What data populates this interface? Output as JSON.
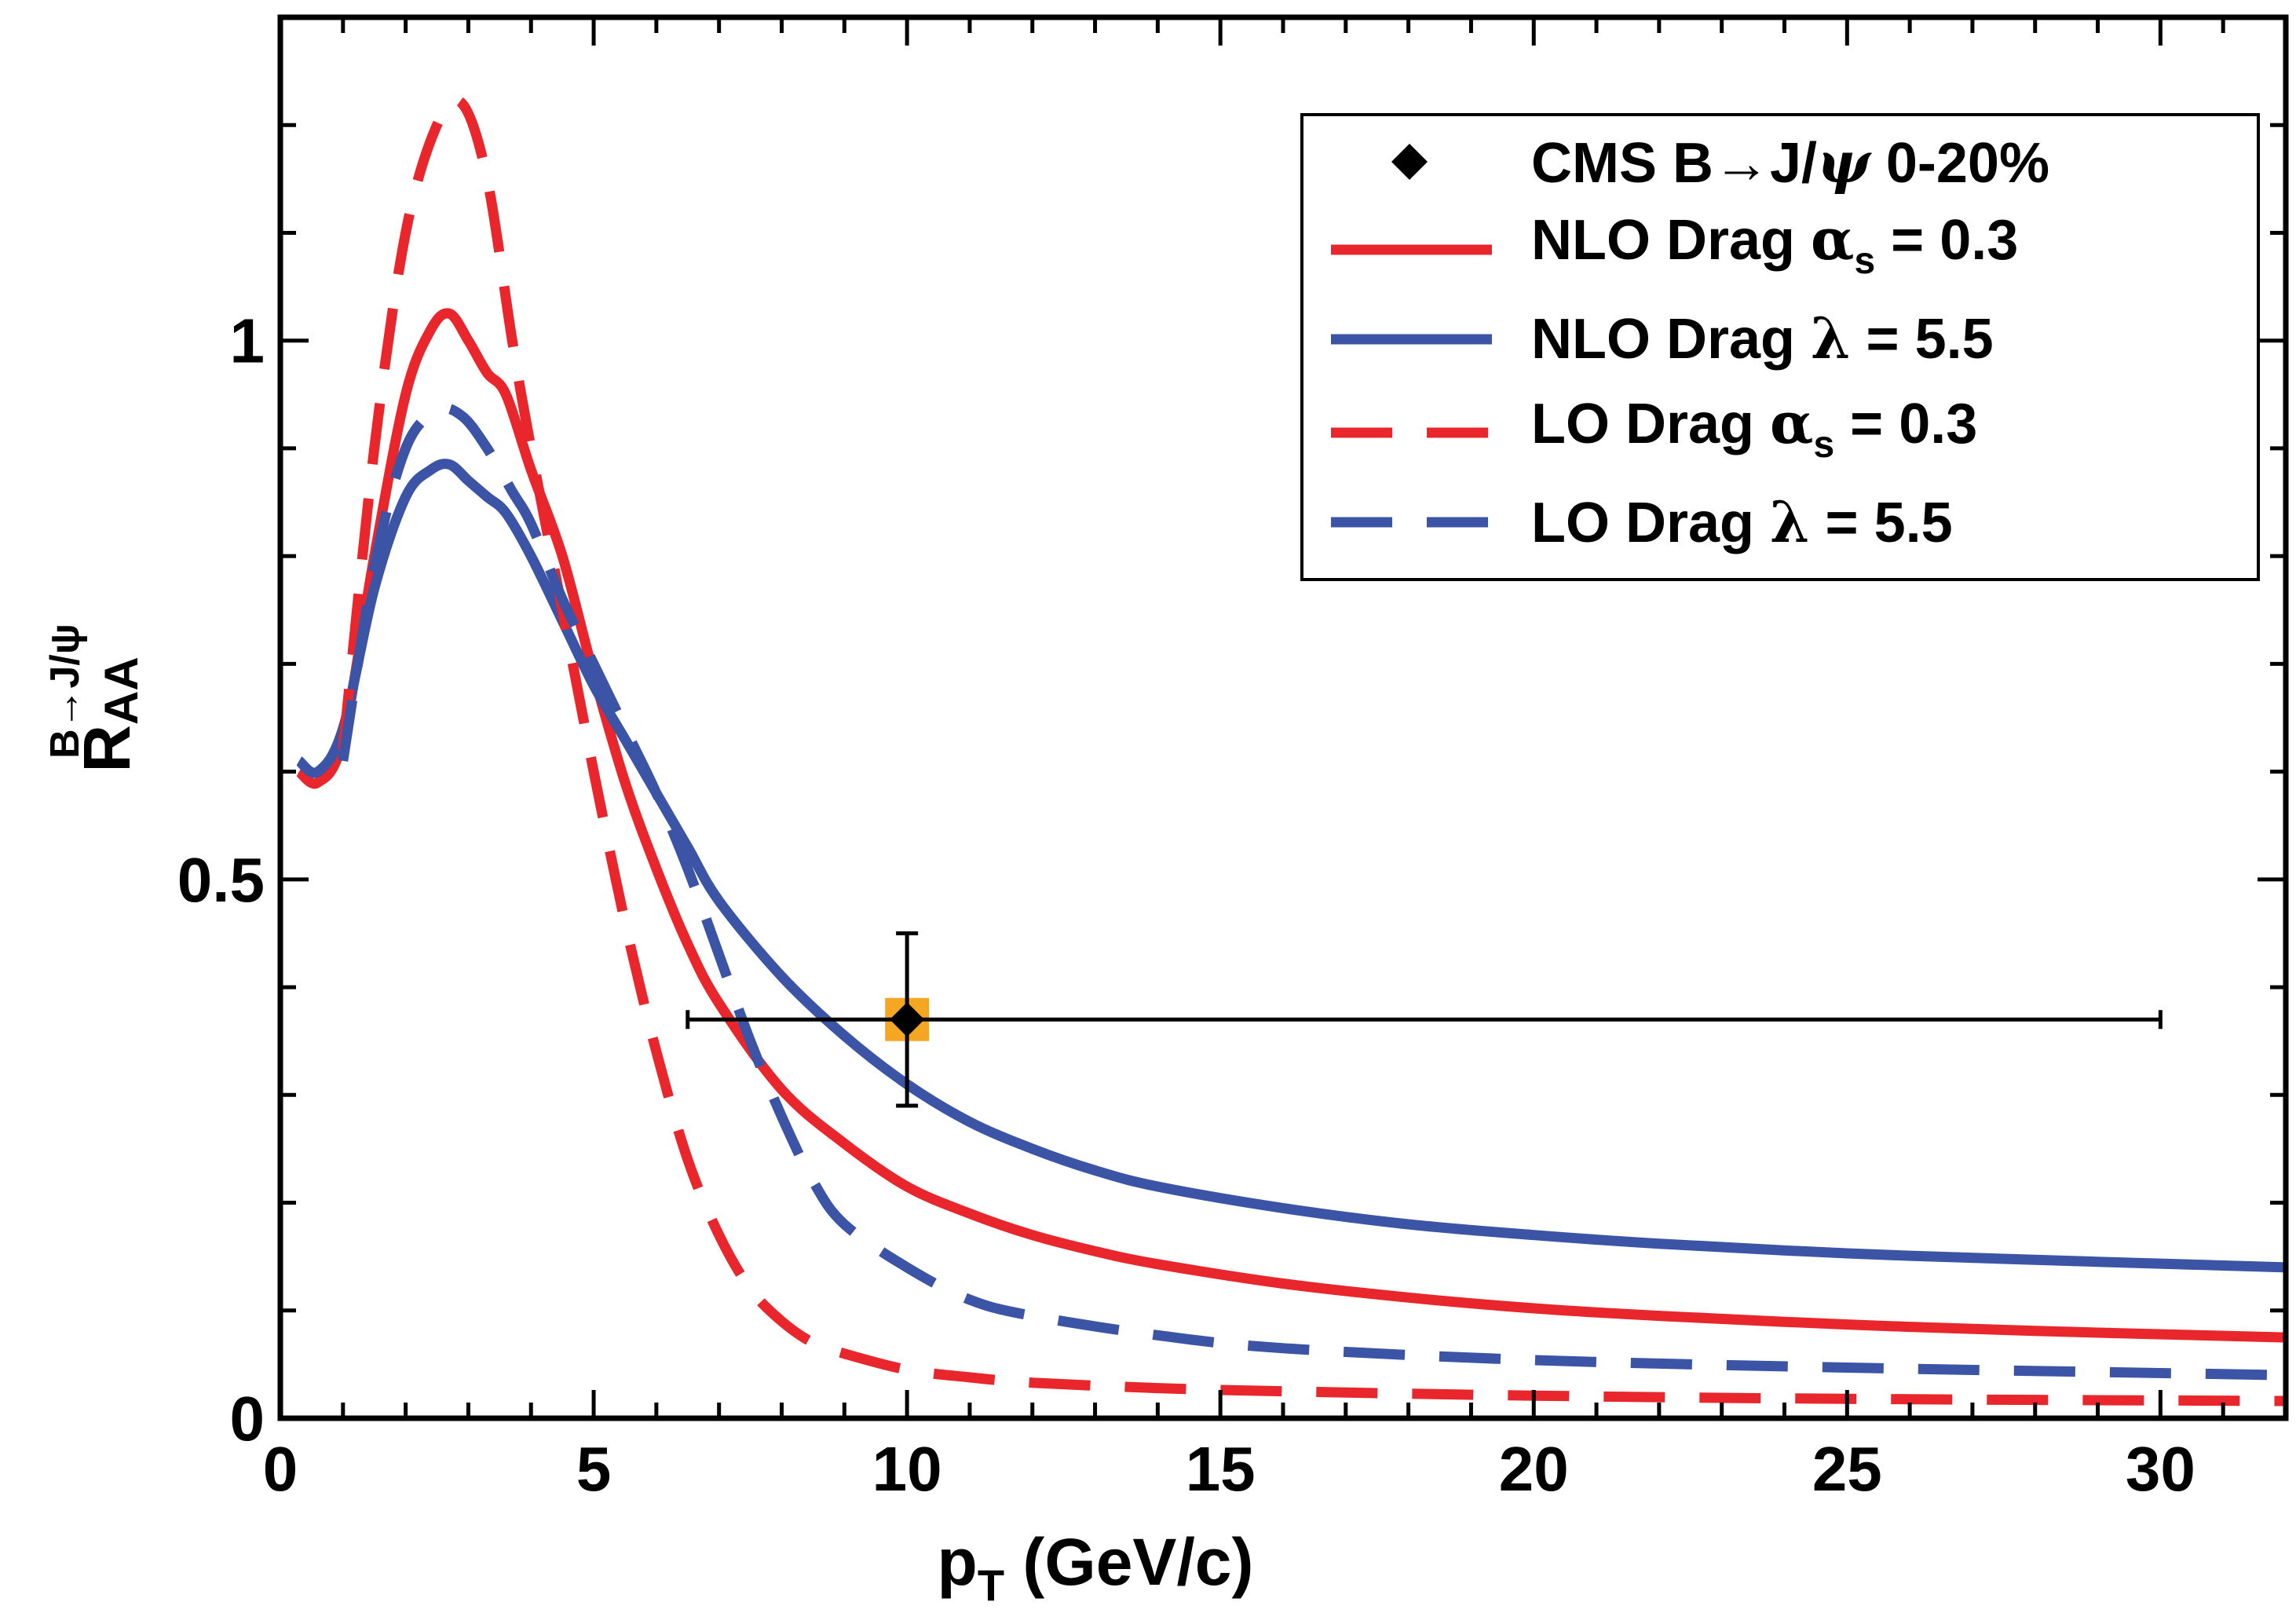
{
  "chart_data": {
    "type": "line",
    "xlabel_main": "p",
    "xlabel_sub": "T",
    "xlabel_rest": " (GeV/c)",
    "ylabel_main": "R",
    "ylabel_sub": "AA",
    "ylabel_sup": "B→J/ψ",
    "xlim": [
      0,
      32
    ],
    "ylim": [
      0,
      1.3
    ],
    "xticks": [
      0,
      5,
      10,
      15,
      20,
      25,
      30
    ],
    "xtick_labels": [
      "0",
      "5",
      "10",
      "15",
      "20",
      "25",
      "30"
    ],
    "yticks": [
      0,
      0.5,
      1
    ],
    "ytick_labels": [
      "0",
      "0.5",
      "1"
    ],
    "x_minor_step": 1,
    "y_minor_step": 0.1,
    "series": [
      {
        "name": "NLO Drag αs = 0.3",
        "legend_main": "NLO Drag ",
        "legend_greek": "α",
        "legend_sub": "s",
        "legend_tail": " = 0.3",
        "color": "#e8262b",
        "dash": "solid",
        "x": [
          0.3,
          0.6,
          1.0,
          1.5,
          2.0,
          2.4,
          2.7,
          3.0,
          3.3,
          3.6,
          4.0,
          4.5,
          5.0,
          5.5,
          6.0,
          6.5,
          7.0,
          8.0,
          9.0,
          10.0,
          11.0,
          12.0,
          13.0,
          14.0,
          16.0,
          18.0,
          20.0,
          22.0,
          25.0,
          28.0,
          32.0
        ],
        "y": [
          0.6,
          0.59,
          0.63,
          0.8,
          0.95,
          1.01,
          1.025,
          1.0,
          0.97,
          0.95,
          0.88,
          0.8,
          0.69,
          0.59,
          0.51,
          0.44,
          0.385,
          0.305,
          0.255,
          0.215,
          0.19,
          0.17,
          0.155,
          0.143,
          0.125,
          0.112,
          0.102,
          0.095,
          0.087,
          0.081,
          0.075
        ]
      },
      {
        "name": "NLO Drag λ = 5.5",
        "legend_main": "NLO Drag ",
        "legend_greek": "λ",
        "legend_sub": "",
        "legend_tail": " = 5.5",
        "color": "#3b54a5",
        "dash": "solid",
        "x": [
          0.3,
          0.6,
          1.0,
          1.5,
          2.0,
          2.4,
          2.7,
          3.0,
          3.3,
          3.6,
          4.0,
          4.5,
          5.0,
          5.5,
          6.0,
          6.5,
          7.0,
          8.0,
          9.0,
          10.0,
          11.0,
          12.0,
          13.0,
          14.0,
          16.0,
          18.0,
          20.0,
          22.0,
          25.0,
          28.0,
          32.0
        ],
        "y": [
          0.61,
          0.6,
          0.64,
          0.77,
          0.855,
          0.88,
          0.885,
          0.87,
          0.855,
          0.84,
          0.8,
          0.74,
          0.68,
          0.63,
          0.58,
          0.53,
          0.48,
          0.41,
          0.355,
          0.31,
          0.275,
          0.25,
          0.23,
          0.215,
          0.195,
          0.18,
          0.17,
          0.162,
          0.153,
          0.147,
          0.14
        ]
      },
      {
        "name": "LO Drag αs = 0.3",
        "legend_main": "LO Drag ",
        "legend_greek": "α",
        "legend_sub": "s",
        "legend_tail": " = 0.3",
        "color": "#e8262b",
        "dash": "dashed",
        "x": [
          1.0,
          1.5,
          2.0,
          2.5,
          2.9,
          3.3,
          3.7,
          4.0,
          4.5,
          5.0,
          5.5,
          6.0,
          6.5,
          7.0,
          7.5,
          8.0,
          8.5,
          9.0,
          10.0,
          11.0,
          12.0,
          14.0,
          16.0,
          20.0,
          25.0,
          32.0
        ],
        "y": [
          0.62,
          0.9,
          1.1,
          1.2,
          1.22,
          1.15,
          1.0,
          0.9,
          0.75,
          0.6,
          0.46,
          0.34,
          0.24,
          0.17,
          0.12,
          0.09,
          0.07,
          0.06,
          0.045,
          0.038,
          0.033,
          0.028,
          0.025,
          0.021,
          0.018,
          0.016
        ]
      },
      {
        "name": "LO Drag λ = 5.5",
        "legend_main": "LO Drag ",
        "legend_greek": "λ",
        "legend_sub": "",
        "legend_tail": " = 5.5",
        "color": "#3b54a5",
        "dash": "dashed",
        "x": [
          1.0,
          1.5,
          2.0,
          2.5,
          2.9,
          3.3,
          3.7,
          4.0,
          4.5,
          5.0,
          5.5,
          6.0,
          6.5,
          7.0,
          7.5,
          8.0,
          8.5,
          9.0,
          10.0,
          11.0,
          12.0,
          14.0,
          16.0,
          20.0,
          25.0,
          32.0
        ],
        "y": [
          0.61,
          0.79,
          0.9,
          0.935,
          0.93,
          0.9,
          0.86,
          0.83,
          0.76,
          0.7,
          0.64,
          0.58,
          0.51,
          0.43,
          0.35,
          0.28,
          0.22,
          0.18,
          0.14,
          0.11,
          0.095,
          0.077,
          0.065,
          0.054,
          0.047,
          0.04
        ]
      }
    ],
    "data_point": {
      "legend_main": "CMS B→J/",
      "legend_greek": "ψ",
      "legend_tail": " 0-20%",
      "x": 10.0,
      "y": 0.37,
      "x_err_low": 6.5,
      "x_err_high": 30.0,
      "y_err_low": 0.29,
      "y_err_high": 0.45,
      "sys_box_halfwidth_x": 0.35,
      "sys_box_halfheight_y": 0.02,
      "marker_color": "#000000",
      "sys_color": "#f5a623"
    }
  }
}
